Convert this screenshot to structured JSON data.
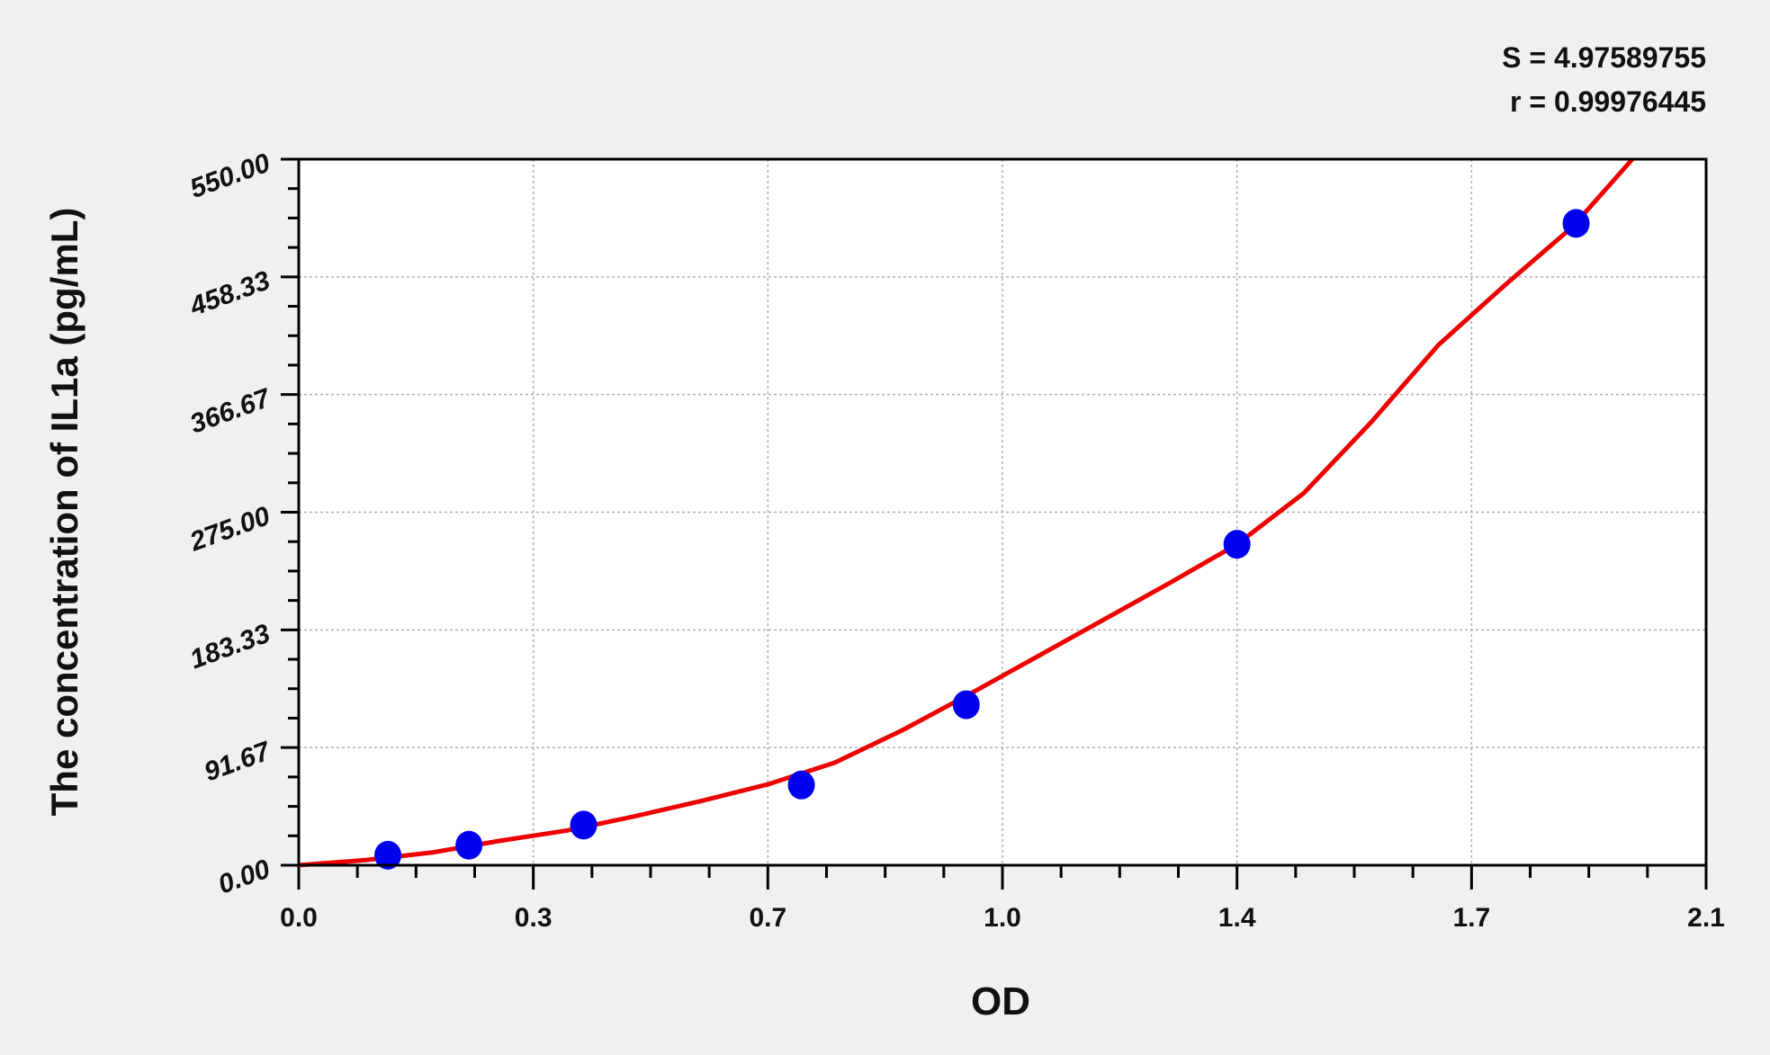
{
  "chart_data": {
    "type": "scatter",
    "title": "",
    "xlabel": "OD",
    "ylabel": "The concentration of IL1a (pg/mL)",
    "xlim": [
      0,
      2.1
    ],
    "ylim": [
      0,
      550
    ],
    "x_ticks": [
      "0.0",
      "0.3",
      "0.7",
      "1.0",
      "1.4",
      "1.7",
      "2.1"
    ],
    "x_tick_values": [
      0,
      0.35,
      0.7,
      1.05,
      1.4,
      1.75,
      2.1
    ],
    "y_ticks": [
      "0.00",
      "91.67",
      "183.33",
      "275.00",
      "366.67",
      "458.33",
      "550.00"
    ],
    "y_tick_values": [
      0,
      91.67,
      183.33,
      275,
      366.67,
      458.33,
      550
    ],
    "grid": true,
    "annotations": [
      "S = 4.97589755",
      "r = 0.99976445"
    ],
    "points": {
      "x": [
        0.133,
        0.254,
        0.425,
        0.75,
        0.996,
        1.4,
        1.906
      ],
      "y": [
        7.8,
        15.6,
        31.25,
        62.5,
        125,
        250,
        500
      ],
      "color": "#0000ee"
    },
    "fit_curve": {
      "color": "#ee0000",
      "x": [
        0,
        0.1,
        0.2,
        0.3,
        0.4,
        0.5,
        0.6,
        0.7,
        0.8,
        0.9,
        1.0,
        1.1,
        1.2,
        1.3,
        1.4,
        1.5,
        1.6,
        1.7,
        1.8,
        1.9,
        1.99
      ],
      "y": [
        0,
        4,
        10,
        19,
        27,
        38,
        50,
        63,
        80,
        105,
        133,
        162,
        191,
        220,
        250,
        290,
        345,
        405,
        452,
        497,
        550
      ]
    }
  }
}
